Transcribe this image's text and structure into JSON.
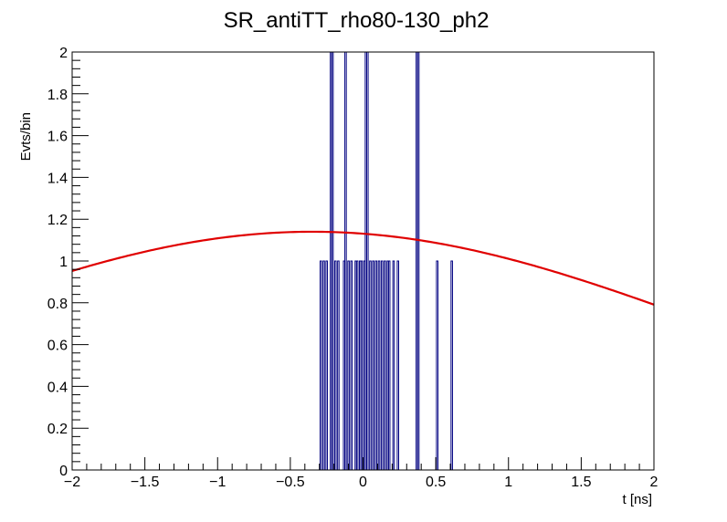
{
  "chart_data": {
    "type": "histogram",
    "title": "SR_antiTT_rho80-130_ph2",
    "xlabel": "t [ns]",
    "ylabel": "Evts/bin",
    "xlim": [
      -2,
      2
    ],
    "ylim": [
      0,
      2
    ],
    "x_ticks": [
      -2,
      -1.5,
      -1,
      -0.5,
      0,
      0.5,
      1,
      1.5,
      2
    ],
    "x_tick_labels": [
      "−2",
      "−1.5",
      "−1",
      "−0.5",
      "0",
      "0.5",
      "1",
      "1.5",
      "2"
    ],
    "y_ticks": [
      0,
      0.2,
      0.4,
      0.6,
      0.8,
      1,
      1.2,
      1.4,
      1.6,
      1.8,
      2
    ],
    "y_tick_labels": [
      "0",
      "0.2",
      "0.4",
      "0.6",
      "0.8",
      "1",
      "1.2",
      "1.4",
      "1.6",
      "1.8",
      "2"
    ],
    "grid": false,
    "legend": "none",
    "histogram": {
      "color": "#000080",
      "bin_width": 0.01,
      "entries": [
        {
          "x": -0.29,
          "y": 1
        },
        {
          "x": -0.27,
          "y": 1
        },
        {
          "x": -0.25,
          "y": 1
        },
        {
          "x": -0.22,
          "y": 2
        },
        {
          "x": -0.21,
          "y": 2
        },
        {
          "x": -0.19,
          "y": 1
        },
        {
          "x": -0.17,
          "y": 1
        },
        {
          "x": -0.13,
          "y": 1
        },
        {
          "x": -0.12,
          "y": 2
        },
        {
          "x": -0.1,
          "y": 1
        },
        {
          "x": -0.08,
          "y": 1
        },
        {
          "x": -0.05,
          "y": 1
        },
        {
          "x": -0.04,
          "y": 1
        },
        {
          "x": -0.02,
          "y": 1
        },
        {
          "x": -0.01,
          "y": 1
        },
        {
          "x": 0.01,
          "y": 1
        },
        {
          "x": 0.02,
          "y": 2
        },
        {
          "x": 0.03,
          "y": 2
        },
        {
          "x": 0.05,
          "y": 1
        },
        {
          "x": 0.07,
          "y": 1
        },
        {
          "x": 0.09,
          "y": 1
        },
        {
          "x": 0.11,
          "y": 1
        },
        {
          "x": 0.13,
          "y": 1
        },
        {
          "x": 0.15,
          "y": 1
        },
        {
          "x": 0.17,
          "y": 1
        },
        {
          "x": 0.18,
          "y": 1
        },
        {
          "x": 0.21,
          "y": 1
        },
        {
          "x": 0.24,
          "y": 1
        },
        {
          "x": 0.37,
          "y": 2
        },
        {
          "x": 0.38,
          "y": 2
        },
        {
          "x": 0.51,
          "y": 1
        },
        {
          "x": 0.61,
          "y": 1
        }
      ]
    },
    "fit": {
      "color": "#e00000",
      "type": "gaussian",
      "amplitude": 1.14,
      "mean": -0.35,
      "sigma": 2.75
    }
  }
}
